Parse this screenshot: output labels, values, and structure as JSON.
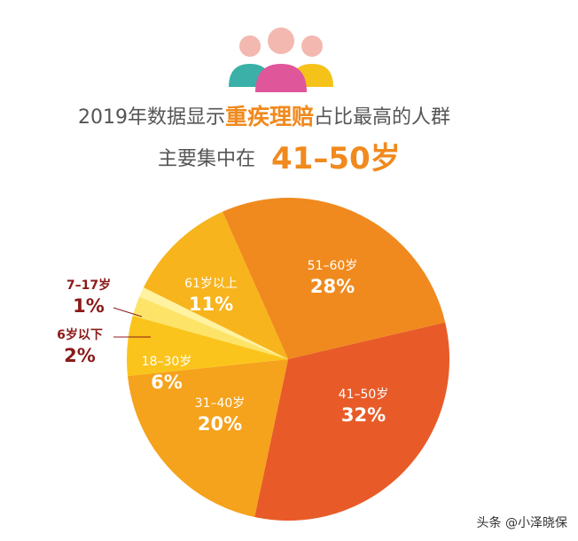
{
  "chart_data": {
    "type": "pie",
    "title_segments": [
      "2019年数据显示",
      "重疾理赔",
      "占比最高的人群"
    ],
    "subtitle_segments": [
      "主要集中在",
      "41–50岁"
    ],
    "categories": [
      "51–60岁",
      "41–50岁",
      "31–40岁",
      "18–30岁",
      "6岁以下",
      "7–17岁",
      "61岁以上"
    ],
    "values": [
      28,
      32,
      20,
      6,
      2,
      1,
      11
    ],
    "value_labels": [
      "28%",
      "32%",
      "20%",
      "6%",
      "2%",
      "1%",
      "11%"
    ],
    "colors": [
      "#f08a1e",
      "#e85b28",
      "#f5a21c",
      "#fbc41c",
      "#fde468",
      "#fff2a0",
      "#f7b41c"
    ]
  },
  "watermark": "头条 @小泽晓保"
}
